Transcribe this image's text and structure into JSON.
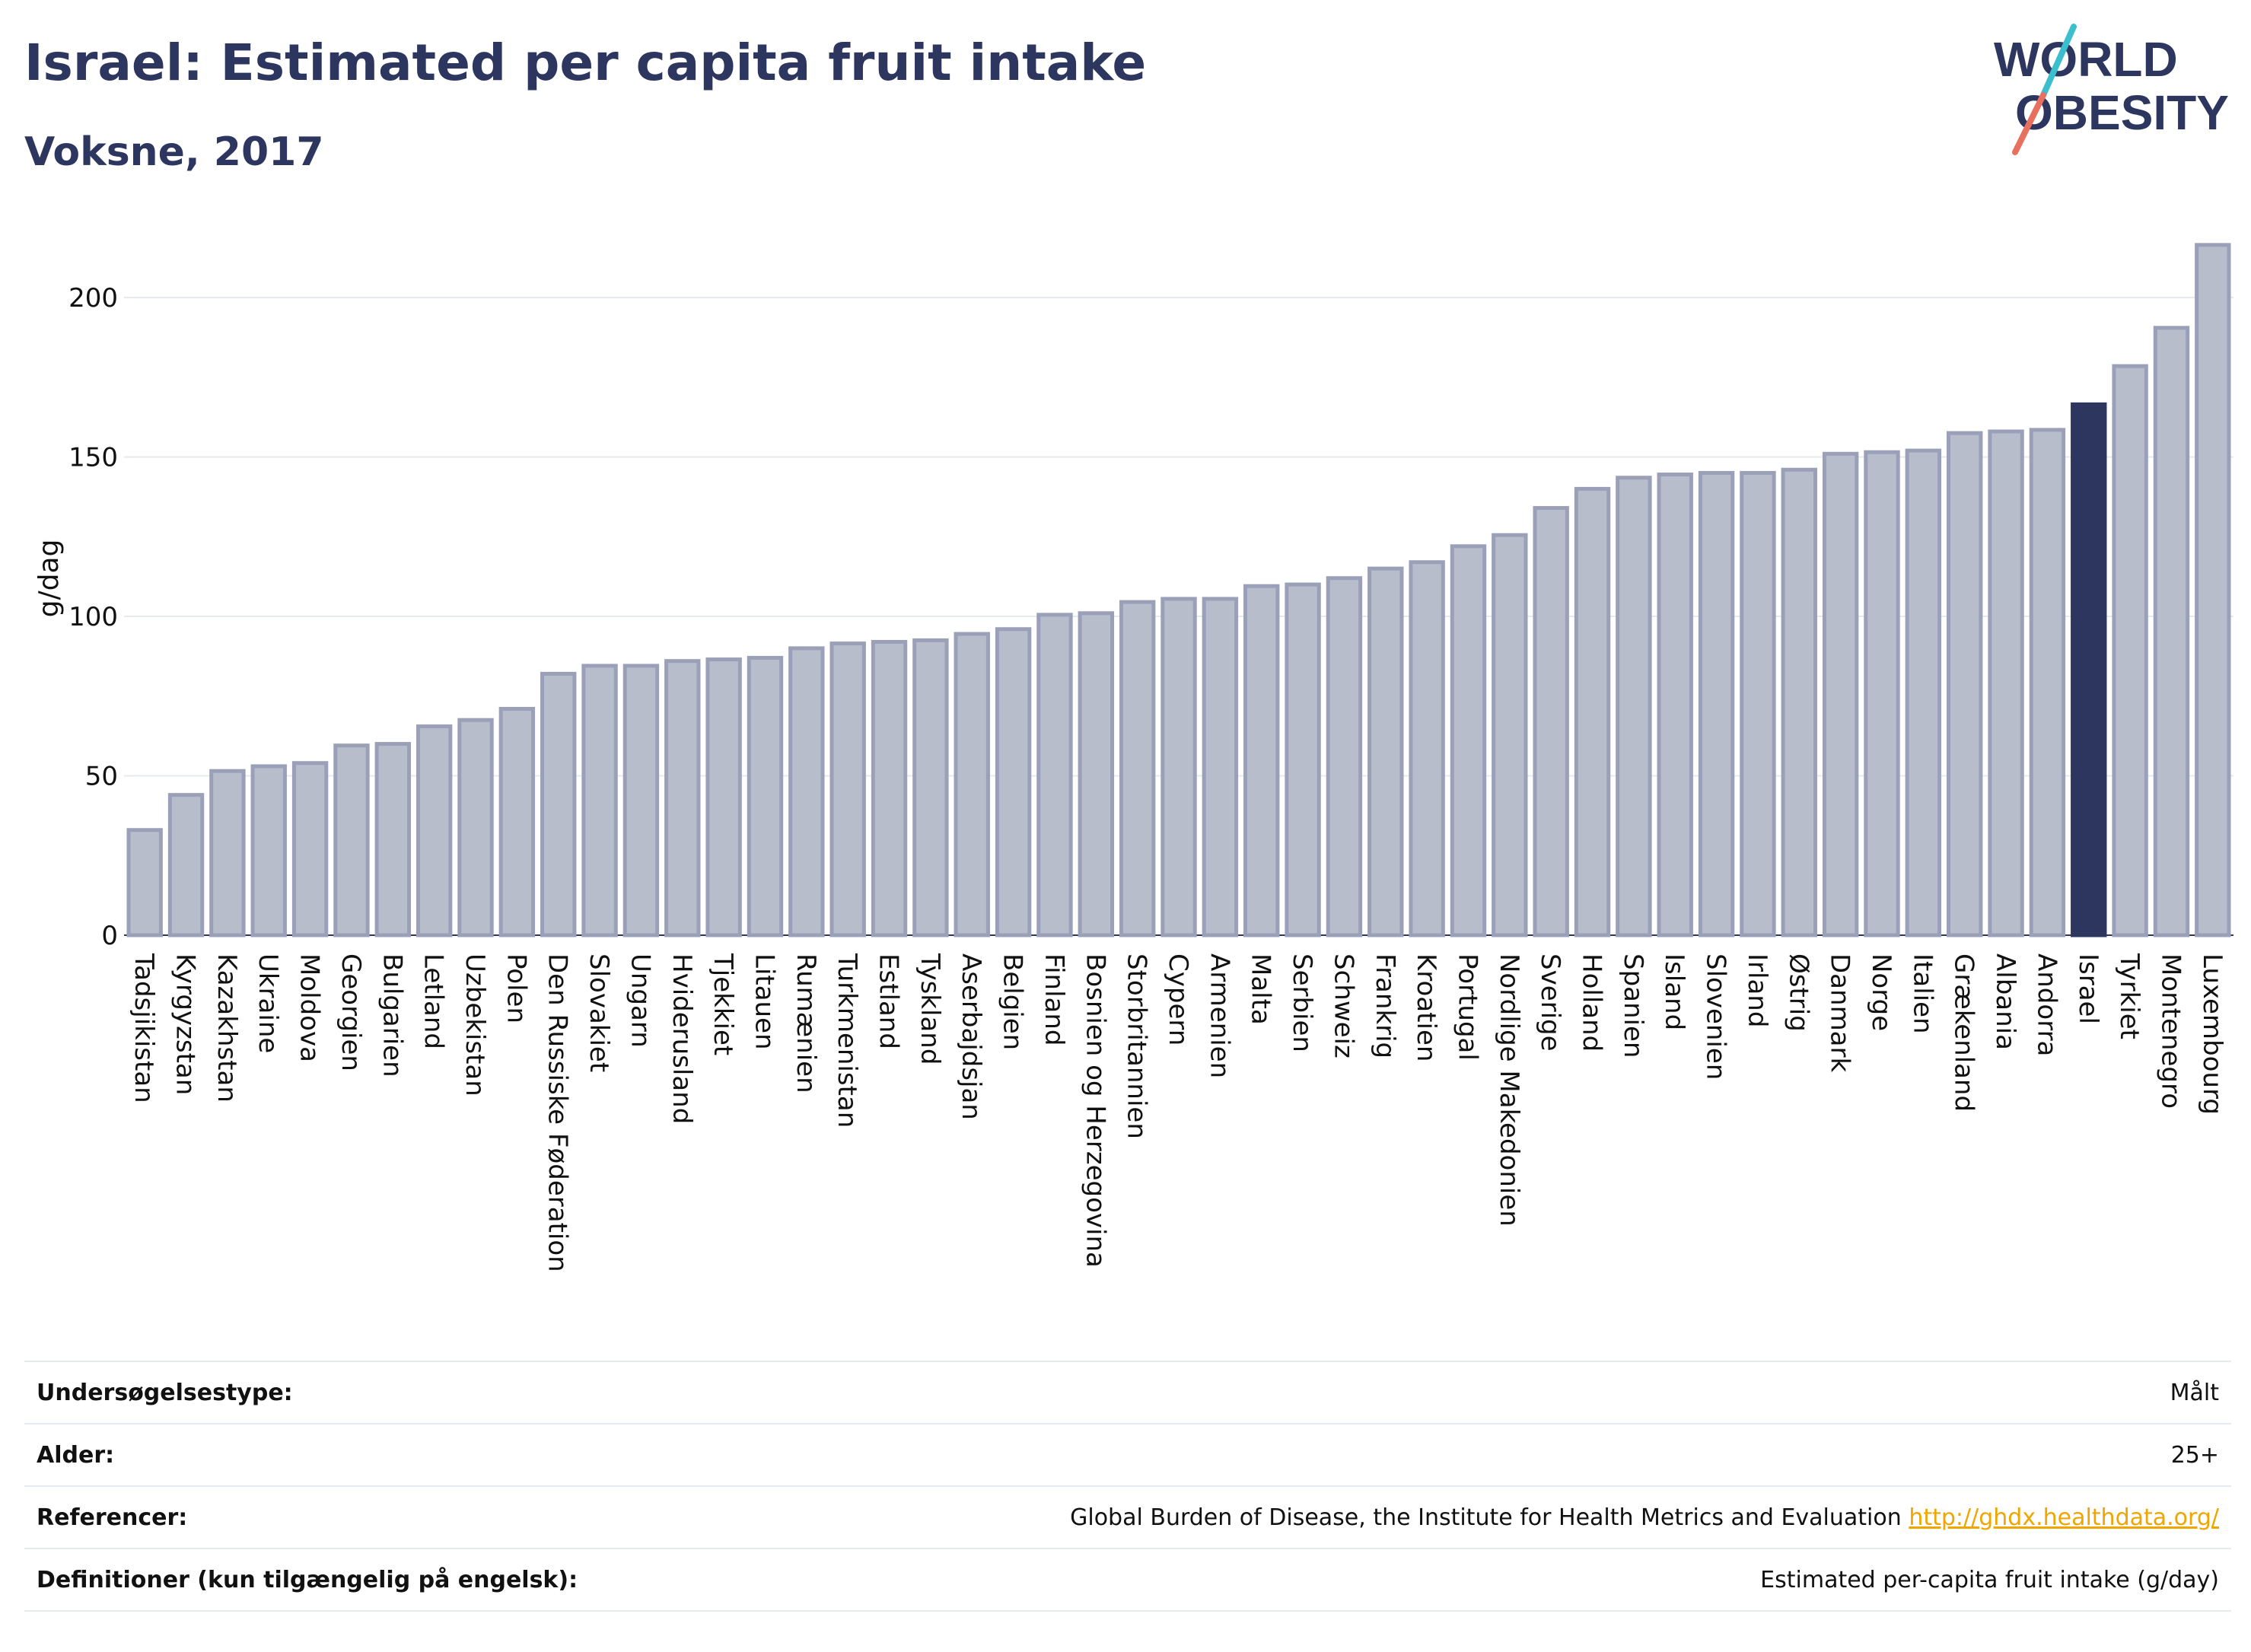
{
  "header": {
    "title": "Israel: Estimated per capita fruit intake",
    "subtitle": "Voksne, 2017"
  },
  "logo": {
    "text_line1": "WORLD",
    "text_line2": "OBESITY",
    "colors": {
      "text": "#2c365e",
      "slash_top": "#3bbfcf",
      "slash_bottom": "#e8705f"
    }
  },
  "colors": {
    "bar_default_fill": "#b8bdcc",
    "bar_default_stroke": "#9aa0b8",
    "bar_highlight": "#2c365e",
    "grid": "#e6e9ee",
    "axis_text": "#111111"
  },
  "chart_data": {
    "type": "bar",
    "title": "Israel: Estimated per capita fruit intake",
    "subtitle": "Voksne, 2017",
    "ylabel": "g/dag",
    "xlabel": "",
    "ylim": [
      0,
      219
    ],
    "yticks": [
      0,
      50,
      100,
      150,
      200
    ],
    "grid": true,
    "highlight": "Israel",
    "categories": [
      "Tadsjikistan",
      "Kyrgyzstan",
      "Kazakhstan",
      "Ukraine",
      "Moldova",
      "Georgien",
      "Bulgarien",
      "Letland",
      "Uzbekistan",
      "Polen",
      "Den Russiske Føderation",
      "Slovakiet",
      "Ungarn",
      "Hviderusland",
      "Tjekkiet",
      "Litauen",
      "Rumænien",
      "Turkmenistan",
      "Estland",
      "Tyskland",
      "Aserbajdsjan",
      "Belgien",
      "Finland",
      "Bosnien og Herzegovina",
      "Storbritannien",
      "Cypern",
      "Armenien",
      "Malta",
      "Serbien",
      "Schweiz",
      "Frankrig",
      "Kroatien",
      "Portugal",
      "Nordlige Makedonien",
      "Sverige",
      "Holland",
      "Spanien",
      "Island",
      "Slovenien",
      "Irland",
      "Østrig",
      "Danmark",
      "Norge",
      "Italien",
      "Grækenland",
      "Albania",
      "Andorra",
      "Israel",
      "Tyrkiet",
      "Montenegro",
      "Luxembourg"
    ],
    "values": [
      33,
      44,
      51.5,
      53,
      54,
      59.5,
      60,
      65.5,
      67.5,
      71,
      82,
      84.5,
      84.5,
      86,
      86.5,
      87,
      90,
      91.5,
      92,
      92.5,
      94.5,
      96,
      100.5,
      101,
      104.5,
      105.5,
      105.5,
      109.5,
      110,
      112,
      115,
      117,
      122,
      125.5,
      134,
      140,
      143.5,
      144.5,
      145,
      145,
      146,
      151,
      151.5,
      152,
      157.5,
      158,
      158.5,
      166.5,
      178.5,
      190.5,
      216.5
    ]
  },
  "info": {
    "rows": [
      {
        "key": "Undersøgelsestype:",
        "value": "Målt"
      },
      {
        "key": "Alder:",
        "value": "25+"
      },
      {
        "key": "Referencer:",
        "value": "Global Burden of Disease, the Institute for Health Metrics and Evaluation",
        "link": "http://ghdx.healthdata.org/"
      },
      {
        "key": "Definitioner (kun tilgængelig på engelsk):",
        "value": "Estimated per-capita fruit intake (g/day)"
      }
    ]
  }
}
